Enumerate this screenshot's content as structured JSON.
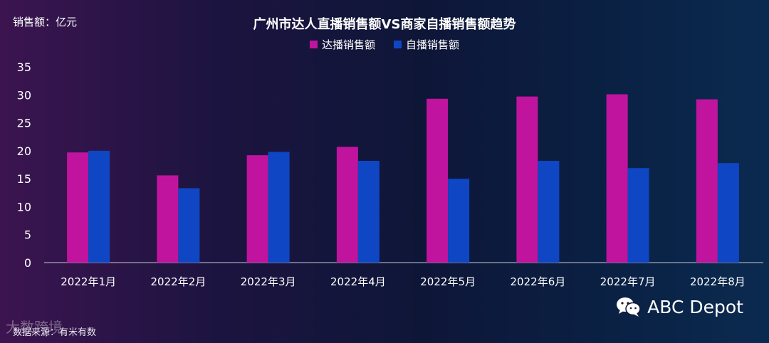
{
  "header": {
    "unit_label": "销售额：亿元",
    "title": "广州市达人直播销售额VS商家自播销售额趋势"
  },
  "legend": [
    {
      "label": "达播销售额",
      "color": "#c0149f"
    },
    {
      "label": "自播销售额",
      "color": "#0f46c4"
    }
  ],
  "footer": {
    "source": "数据来源：有米有数",
    "brand": "ABC Depot",
    "brand_icon": "wechat-icon",
    "watermark": "大数跨境"
  },
  "chart_data": {
    "type": "bar",
    "title": "广州市达人直播销售额VS商家自播销售额趋势",
    "ylabel": "销售额：亿元",
    "xlabel": "",
    "ylim": [
      0,
      35
    ],
    "yticks": [
      0,
      5,
      10,
      15,
      20,
      25,
      30,
      35
    ],
    "grid": false,
    "legend_position": "top-center",
    "categories": [
      "2022年1月",
      "2022年2月",
      "2022年3月",
      "2022年4月",
      "2022年5月",
      "2022年6月",
      "2022年7月",
      "2022年8月"
    ],
    "series": [
      {
        "name": "达播销售额",
        "color": "#c0149f",
        "values": [
          19.7,
          15.6,
          19.2,
          20.7,
          29.3,
          29.7,
          30.1,
          29.2
        ]
      },
      {
        "name": "自播销售额",
        "color": "#0f46c4",
        "values": [
          20.0,
          13.3,
          19.8,
          18.2,
          15.0,
          18.2,
          16.9,
          17.8
        ]
      }
    ]
  }
}
